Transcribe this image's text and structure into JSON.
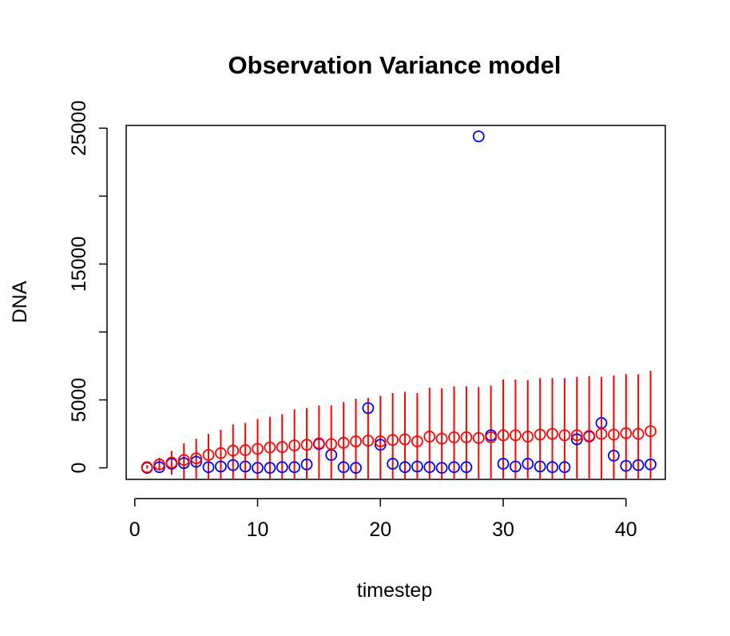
{
  "chart_data": {
    "type": "scatter",
    "title": "Observation Variance model",
    "xlabel": "timestep",
    "ylabel": "DNA",
    "xlim": [
      -0.7,
      43.2
    ],
    "ylim": [
      -850,
      25200
    ],
    "x_ticks": [
      0,
      10,
      20,
      30,
      40
    ],
    "y_ticks": [
      0,
      5000,
      10000,
      15000,
      20000,
      25000
    ],
    "y_tick_labels": [
      "0",
      "5000",
      "",
      "15000",
      "",
      "25000"
    ],
    "grid": false,
    "legend": "none",
    "series": [
      {
        "color": "#ff0000",
        "marker": "open-circle",
        "x": [
          1,
          2,
          3,
          4,
          5,
          6,
          7,
          8,
          9,
          10,
          11,
          12,
          13,
          14,
          15,
          16,
          17,
          18,
          19,
          20,
          21,
          22,
          23,
          24,
          25,
          26,
          27,
          28,
          29,
          30,
          31,
          32,
          33,
          34,
          35,
          36,
          37,
          38,
          39,
          40,
          41,
          42
        ],
        "y": [
          50,
          250,
          380,
          580,
          700,
          950,
          1080,
          1270,
          1300,
          1400,
          1500,
          1530,
          1650,
          1700,
          1800,
          1750,
          1850,
          1950,
          2000,
          1950,
          2050,
          2100,
          1950,
          2300,
          2150,
          2250,
          2250,
          2200,
          2250,
          2400,
          2400,
          2300,
          2450,
          2500,
          2400,
          2400,
          2350,
          2500,
          2450,
          2550,
          2500,
          2700
        ],
        "interval_lower": [
          -50,
          -200,
          -500,
          -800,
          -1100,
          -850,
          -850,
          -850,
          -850,
          -850,
          -850,
          -850,
          -850,
          -850,
          -850,
          -850,
          -850,
          -850,
          -850,
          -850,
          -850,
          -850,
          -850,
          -850,
          -850,
          -850,
          -850,
          -850,
          -850,
          -850,
          -850,
          -850,
          -850,
          -850,
          -850,
          -850,
          -850,
          -850,
          -850,
          -850,
          -850,
          -850
        ],
        "interval_upper": [
          200,
          750,
          1250,
          1800,
          2150,
          2500,
          2800,
          3200,
          3300,
          3600,
          3750,
          3950,
          4300,
          4400,
          4600,
          4600,
          4850,
          5100,
          5150,
          5300,
          5500,
          5600,
          5500,
          5900,
          5850,
          6000,
          6000,
          5950,
          6050,
          6500,
          6500,
          6450,
          6600,
          6600,
          6600,
          6700,
          6750,
          6700,
          6800,
          6900,
          6900,
          7150
        ]
      },
      {
        "color": "#0000ff",
        "marker": "open-circle",
        "x": [
          1,
          2,
          3,
          4,
          5,
          6,
          7,
          8,
          9,
          10,
          11,
          12,
          13,
          14,
          15,
          16,
          17,
          18,
          19,
          20,
          21,
          22,
          23,
          24,
          25,
          26,
          27,
          28,
          29,
          30,
          31,
          32,
          33,
          34,
          35,
          36,
          37,
          38,
          39,
          40,
          41,
          42
        ],
        "y": [
          0,
          50,
          300,
          350,
          450,
          50,
          100,
          200,
          100,
          0,
          0,
          50,
          50,
          250,
          1750,
          950,
          50,
          0,
          4400,
          1700,
          300,
          50,
          100,
          50,
          0,
          50,
          50,
          24400,
          2400,
          300,
          100,
          300,
          100,
          50,
          50,
          2100,
          2300,
          3300,
          900,
          150,
          200,
          250
        ]
      }
    ]
  }
}
